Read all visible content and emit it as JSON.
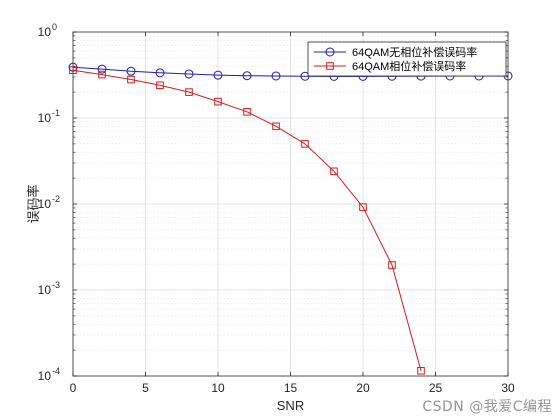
{
  "watermark": "CSDN @我爱C编程",
  "chart_data": {
    "type": "line",
    "title": "",
    "xlabel": "SNR",
    "ylabel": "误码率",
    "xlim": [
      0,
      30
    ],
    "ylim": [
      0.0001,
      1
    ],
    "yscale": "log",
    "grid": true,
    "x_ticks": [
      "0",
      "5",
      "10",
      "15",
      "20",
      "25",
      "30"
    ],
    "y_ticks": [
      {
        "base": "10",
        "exp": "-4"
      },
      {
        "base": "10",
        "exp": "-3"
      },
      {
        "base": "10",
        "exp": "-2"
      },
      {
        "base": "10",
        "exp": "-1"
      },
      {
        "base": "10",
        "exp": "0"
      }
    ],
    "legend_location": "top-right",
    "series": [
      {
        "name": "64QAM无相位补偿误码率",
        "color": "#1f1fb4",
        "marker": "circle",
        "x": [
          0,
          2,
          4,
          6,
          8,
          10,
          12,
          14,
          16,
          18,
          20,
          22,
          24,
          26,
          28,
          30
        ],
        "y": [
          0.39,
          0.37,
          0.35,
          0.335,
          0.325,
          0.315,
          0.31,
          0.308,
          0.306,
          0.305,
          0.305,
          0.306,
          0.307,
          0.308,
          0.308,
          0.308
        ]
      },
      {
        "name": "64QAM相位补偿误码率",
        "color": "#d11f1f",
        "marker": "square",
        "x": [
          0,
          2,
          4,
          6,
          8,
          10,
          12,
          14,
          16,
          18,
          20,
          22,
          24
        ],
        "y": [
          0.36,
          0.32,
          0.28,
          0.24,
          0.2,
          0.155,
          0.118,
          0.08,
          0.05,
          0.024,
          0.0092,
          0.00195,
          0.000115
        ]
      }
    ]
  }
}
